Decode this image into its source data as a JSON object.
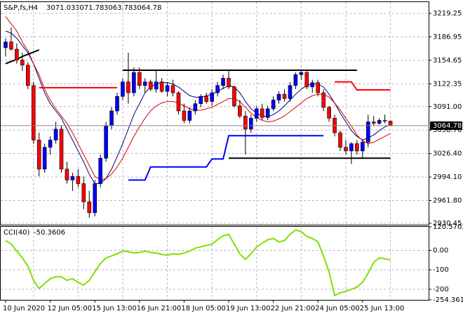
{
  "chart_data": [
    {
      "type": "candlestick",
      "title": "S&P,fs,H4",
      "categories": [
        "10 Jun 2020",
        null,
        null,
        null,
        null,
        null,
        null,
        null,
        "12 Jun 05:00",
        null,
        null,
        null,
        null,
        null,
        null,
        null,
        "15 Jun 13:00",
        null,
        null,
        null,
        null,
        null,
        null,
        null,
        "16 Jun 21:00",
        null,
        null,
        null,
        null,
        null,
        null,
        null,
        "18 Jun 05:00",
        null,
        null,
        null,
        null,
        null,
        null,
        null,
        "19 Jun 13:00",
        null,
        null,
        null,
        null,
        null,
        null,
        null,
        "22 Jun 21:00",
        null,
        null,
        null,
        null,
        null,
        null,
        null,
        "24 Jun 05:00",
        null,
        null,
        null,
        null,
        null,
        null,
        null,
        "25 Jun 13:00",
        null,
        null,
        null,
        null,
        null
      ],
      "open": [
        3172,
        3180,
        3170,
        3155,
        3148,
        3120,
        3045,
        3005,
        3035,
        3045,
        3060,
        3005,
        2990,
        2995,
        2985,
        2960,
        2945,
        2985,
        3020,
        3065,
        3085,
        3105,
        3125,
        3110,
        3138,
        3120,
        3125,
        3115,
        3125,
        3112,
        3120,
        3110,
        3085,
        3072,
        3085,
        3095,
        3105,
        3098,
        3110,
        3120,
        3130,
        3118,
        3092,
        3078,
        3060,
        3075,
        3088,
        3076,
        3088,
        3100,
        3108,
        3102,
        3120,
        3135,
        3138,
        3118,
        3124,
        3110,
        3090,
        3075,
        3055,
        3035,
        3030,
        3040,
        3030,
        3042,
        3070,
        3068,
        3072,
        3071.03
      ],
      "high": [
        3185,
        3200,
        3178,
        3165,
        3152,
        3125,
        3055,
        3040,
        3050,
        3070,
        3065,
        3015,
        3000,
        3005,
        2995,
        2975,
        2990,
        3025,
        3070,
        3090,
        3110,
        3130,
        3165,
        3145,
        3145,
        3130,
        3128,
        3140,
        3130,
        3125,
        3128,
        3112,
        3095,
        3090,
        3100,
        3108,
        3110,
        3115,
        3125,
        3135,
        3140,
        3120,
        3100,
        3085,
        3080,
        3092,
        3095,
        3092,
        3105,
        3112,
        3115,
        3125,
        3138,
        3142,
        3142,
        3128,
        3128,
        3115,
        3092,
        3080,
        3058,
        3045,
        3042,
        3045,
        3045,
        3080,
        3078,
        3075,
        3080,
        3071.78
      ],
      "low": [
        3160,
        3168,
        3150,
        3140,
        3115,
        3040,
        2995,
        3000,
        3025,
        3040,
        3000,
        2985,
        2975,
        2980,
        2950,
        2938,
        2940,
        2980,
        3015,
        3060,
        3080,
        3100,
        3095,
        3105,
        3115,
        3110,
        3112,
        3110,
        3110,
        3105,
        3105,
        3080,
        3068,
        3068,
        3080,
        3090,
        3095,
        3092,
        3105,
        3115,
        3115,
        3090,
        3075,
        3025,
        3055,
        3070,
        3072,
        3072,
        3085,
        3095,
        3098,
        3098,
        3115,
        3128,
        3115,
        3110,
        3105,
        3085,
        3070,
        3050,
        3030,
        3025,
        3012,
        3025,
        3020,
        3035,
        3065,
        3066,
        3068,
        3063.78
      ],
      "close": [
        3180,
        3170,
        3155,
        3148,
        3120,
        3045,
        3005,
        3035,
        3045,
        3060,
        3005,
        2990,
        2995,
        2985,
        2960,
        2945,
        2985,
        3020,
        3065,
        3085,
        3105,
        3125,
        3110,
        3138,
        3120,
        3125,
        3115,
        3125,
        3112,
        3120,
        3110,
        3085,
        3072,
        3085,
        3095,
        3105,
        3098,
        3110,
        3120,
        3130,
        3118,
        3092,
        3078,
        3060,
        3075,
        3088,
        3076,
        3088,
        3100,
        3108,
        3102,
        3120,
        3135,
        3138,
        3118,
        3124,
        3110,
        3090,
        3075,
        3055,
        3035,
        3030,
        3040,
        3030,
        3042,
        3070,
        3068,
        3072,
        3071.03,
        3064.78
      ],
      "up_color": "#0000ff",
      "down_color": "#ff0000",
      "overlays": [
        {
          "color": "#00007f",
          "width": 1,
          "values": [
            3195,
            3192,
            3185,
            3175,
            3165,
            3150,
            3130,
            3110,
            3095,
            3085,
            3075,
            3060,
            3045,
            3030,
            3015,
            2998,
            2985,
            2985,
            2992,
            3005,
            3022,
            3040,
            3060,
            3080,
            3095,
            3110,
            3118,
            3122,
            3124,
            3124,
            3122,
            3118,
            3112,
            3106,
            3104,
            3104,
            3106,
            3108,
            3112,
            3116,
            3120,
            3118,
            3110,
            3098,
            3088,
            3082,
            3078,
            3077,
            3080,
            3085,
            3092,
            3100,
            3108,
            3115,
            3120,
            3122,
            3122,
            3118,
            3108,
            3096,
            3082,
            3070,
            3058,
            3050,
            3045,
            3048,
            3052,
            3058,
            3063,
            3066
          ]
        },
        {
          "color": "#e00000",
          "width": 1,
          "values": [
            3215,
            3205,
            3195,
            3180,
            3168,
            3150,
            3135,
            3115,
            3100,
            3088,
            3078,
            3068,
            3055,
            3040,
            3025,
            3010,
            2995,
            2990,
            2992,
            2998,
            3008,
            3020,
            3035,
            3050,
            3063,
            3075,
            3085,
            3092,
            3096,
            3098,
            3098,
            3096,
            3092,
            3088,
            3086,
            3086,
            3088,
            3090,
            3094,
            3098,
            3102,
            3102,
            3098,
            3090,
            3082,
            3076,
            3072,
            3070,
            3071,
            3074,
            3078,
            3084,
            3090,
            3096,
            3102,
            3106,
            3108,
            3108,
            3104,
            3096,
            3086,
            3075,
            3064,
            3052,
            3044,
            3040,
            3042,
            3046,
            3050,
            3054
          ]
        },
        {
          "color": "#ff0000",
          "width": 2,
          "values": [
            null,
            null,
            null,
            null,
            null,
            null,
            3117,
            3117,
            3117,
            3117,
            3117,
            3117,
            3117,
            3117,
            3117,
            3117,
            3117,
            3117,
            3117,
            3117,
            3117,
            null,
            null,
            null,
            null,
            null,
            null,
            null,
            null,
            null,
            null,
            null,
            null,
            null,
            null,
            null,
            null,
            null,
            null,
            null,
            null,
            null,
            null,
            null,
            null,
            null,
            null,
            null,
            null,
            null,
            null,
            null,
            null,
            null,
            null,
            null,
            null,
            null,
            null,
            3125,
            3125,
            3125,
            3125,
            3114,
            3114,
            3114,
            3114,
            3114,
            3114,
            3114
          ]
        },
        {
          "color": "#0000ff",
          "width": 2,
          "values": [
            null,
            null,
            null,
            null,
            null,
            null,
            null,
            null,
            null,
            null,
            null,
            null,
            null,
            null,
            null,
            null,
            null,
            null,
            null,
            null,
            null,
            null,
            2990,
            2990,
            2990,
            2990,
            3008,
            3008,
            3008,
            3008,
            3008,
            3008,
            3008,
            3008,
            3008,
            3008,
            3008,
            3019,
            3019,
            3019,
            3051,
            3051,
            3051,
            3051,
            3051,
            3051,
            3051,
            3051,
            3051,
            3051,
            3051,
            3051,
            3051,
            3051,
            3051,
            3051,
            3051,
            3051,
            null,
            null,
            null,
            null,
            null,
            null,
            null,
            null,
            null,
            null,
            null,
            null
          ]
        },
        {
          "color": "#000000",
          "width": 2,
          "values": [
            null,
            null,
            null,
            null,
            null,
            null,
            null,
            null,
            null,
            null,
            null,
            null,
            null,
            null,
            null,
            null,
            null,
            null,
            null,
            null,
            null,
            3141,
            3141,
            3141,
            3141,
            3141,
            3141,
            3141,
            3141,
            3141,
            3141,
            3141,
            3141,
            3141,
            3141,
            3141,
            3141,
            3141,
            3141,
            3141,
            3141,
            3141,
            3141,
            3141,
            3141,
            3141,
            3141,
            3141,
            3141,
            3141,
            3141,
            3141,
            3141,
            3141,
            3141,
            3141,
            3141,
            3141,
            3141,
            3141,
            3141,
            3141,
            3141,
            3141,
            null,
            null,
            null,
            null,
            null,
            null
          ]
        },
        {
          "color": "#000000",
          "width": 2,
          "values": [
            null,
            null,
            null,
            null,
            null,
            null,
            null,
            null,
            null,
            null,
            null,
            null,
            null,
            null,
            null,
            null,
            null,
            null,
            null,
            null,
            null,
            null,
            null,
            null,
            null,
            null,
            null,
            null,
            null,
            null,
            null,
            null,
            null,
            null,
            null,
            null,
            null,
            null,
            null,
            null,
            3020,
            3020,
            3020,
            3020,
            3020,
            3020,
            3020,
            3020,
            3020,
            3020,
            3020,
            3020,
            3020,
            3020,
            3020,
            3020,
            3020,
            3020,
            3020,
            3020,
            3020,
            3020,
            3020,
            3020,
            3020,
            3020,
            3020,
            3020,
            3020,
            3020
          ]
        },
        {
          "color": "#000000",
          "width": 2,
          "values": [
            3150,
            3153,
            3156,
            3160,
            3163,
            3166,
            3169,
            null,
            null,
            null,
            null,
            null,
            null,
            null,
            null,
            null,
            null,
            null,
            null,
            null,
            null,
            null,
            null,
            null,
            null,
            null,
            null,
            null,
            null,
            null,
            null,
            null,
            null,
            null,
            null,
            null,
            null,
            null,
            null,
            null,
            null,
            null,
            null,
            null,
            null,
            null,
            null,
            null,
            null,
            null,
            null,
            null,
            null,
            null,
            null,
            null,
            null,
            null,
            null,
            null,
            null,
            null,
            null,
            null,
            null,
            null,
            null,
            null,
            null,
            null
          ]
        }
      ],
      "ylim": [
        2928.5,
        3235.7
      ],
      "yticks": [
        3219.25,
        3186.95,
        3154.65,
        3122.35,
        {
          "value": 3091,
          "label": "3091.00"
        },
        {
          "value": 3058.7,
          "label": "3058.70"
        },
        {
          "value": 3026.4,
          "label": "3026.40"
        },
        {
          "value": 2994.1,
          "label": "2994.10"
        },
        {
          "value": 2961.8,
          "label": "2961.80"
        },
        2930.45
      ],
      "grid": true
    },
    {
      "type": "line",
      "title": "CCI(40)",
      "series": [
        {
          "color": "#7fe000",
          "values": [
            50,
            32,
            -4,
            -39,
            -82,
            -154,
            -196,
            -171,
            -146,
            -136,
            -136,
            -154,
            -146,
            -164,
            -179,
            -154,
            -111,
            -68,
            -39,
            -29,
            -18,
            -4,
            -7,
            -14,
            -11,
            -4,
            -11,
            -14,
            -21,
            -25,
            -18,
            -21,
            -14,
            -4,
            11,
            18,
            25,
            32,
            54,
            75,
            82,
            32,
            -18,
            -46,
            -18,
            18,
            36,
            54,
            61,
            43,
            50,
            82,
            104,
            96,
            71,
            61,
            43,
            -29,
            -111,
            -232,
            -218,
            -211,
            -200,
            -189,
            -164,
            -118,
            -61,
            -39,
            -43,
            -50.3606
          ]
        }
      ],
      "ylim": [
        -254.3618,
        120.5702
      ],
      "yticks": [
        120.5702,
        {
          "value": 0,
          "label": "0.00"
        },
        -100,
        -200,
        -254.3618
      ],
      "grid": true
    }
  ]
}
